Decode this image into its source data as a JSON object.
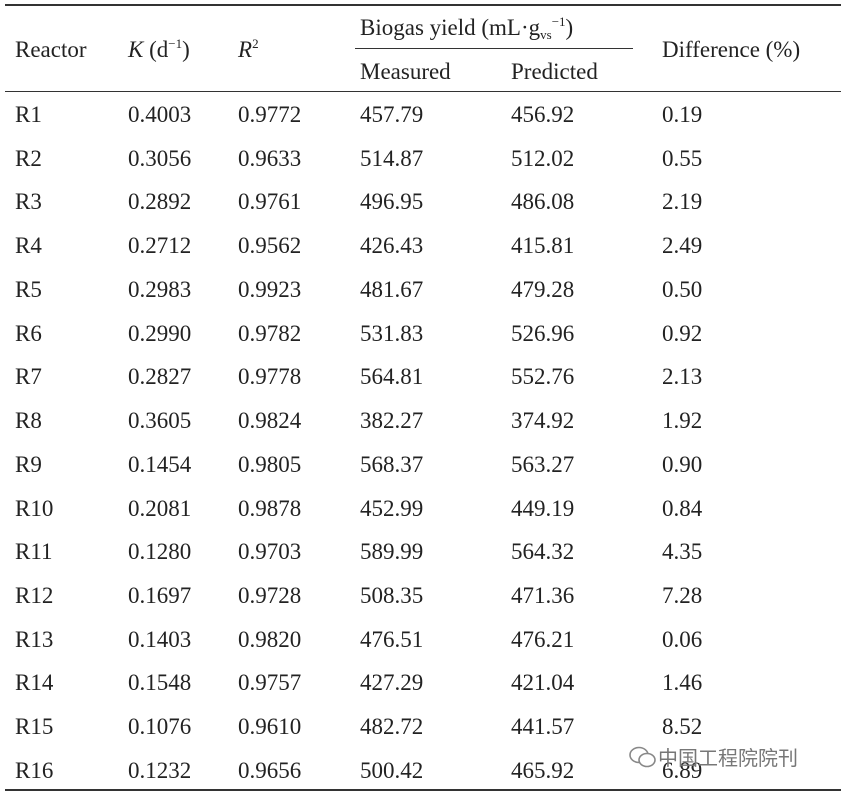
{
  "table": {
    "header": {
      "reactor": "Reactor",
      "k": [
        "K",
        " (d",
        "−1",
        ")"
      ],
      "r2": [
        "R",
        "2"
      ],
      "biogas": [
        "Biogas yield (mL·g",
        "vs",
        "−1",
        ")"
      ],
      "measured": "Measured",
      "predicted": "Predicted",
      "difference": "Difference (%)"
    },
    "rows": [
      [
        "R1",
        "0.4003",
        "0.9772",
        "457.79",
        "456.92",
        "0.19"
      ],
      [
        "R2",
        "0.3056",
        "0.9633",
        "514.87",
        "512.02",
        "0.55"
      ],
      [
        "R3",
        "0.2892",
        "0.9761",
        "496.95",
        "486.08",
        "2.19"
      ],
      [
        "R4",
        "0.2712",
        "0.9562",
        "426.43",
        "415.81",
        "2.49"
      ],
      [
        "R5",
        "0.2983",
        "0.9923",
        "481.67",
        "479.28",
        "0.50"
      ],
      [
        "R6",
        "0.2990",
        "0.9782",
        "531.83",
        "526.96",
        "0.92"
      ],
      [
        "R7",
        "0.2827",
        "0.9778",
        "564.81",
        "552.76",
        "2.13"
      ],
      [
        "R8",
        "0.3605",
        "0.9824",
        "382.27",
        "374.92",
        "1.92"
      ],
      [
        "R9",
        "0.1454",
        "0.9805",
        "568.37",
        "563.27",
        "0.90"
      ],
      [
        "R10",
        "0.2081",
        "0.9878",
        "452.99",
        "449.19",
        "0.84"
      ],
      [
        "R11",
        "0.1280",
        "0.9703",
        "589.99",
        "564.32",
        "4.35"
      ],
      [
        "R12",
        "0.1697",
        "0.9728",
        "508.35",
        "471.36",
        "7.28"
      ],
      [
        "R13",
        "0.1403",
        "0.9820",
        "476.51",
        "476.21",
        "0.06"
      ],
      [
        "R14",
        "0.1548",
        "0.9757",
        "427.29",
        "421.04",
        "1.46"
      ],
      [
        "R15",
        "0.1076",
        "0.9610",
        "482.72",
        "441.57",
        "8.52"
      ],
      [
        "R16",
        "0.1232",
        "0.9656",
        "500.42",
        "465.92",
        "6.89"
      ]
    ]
  },
  "watermark": "中国工程院院刊"
}
